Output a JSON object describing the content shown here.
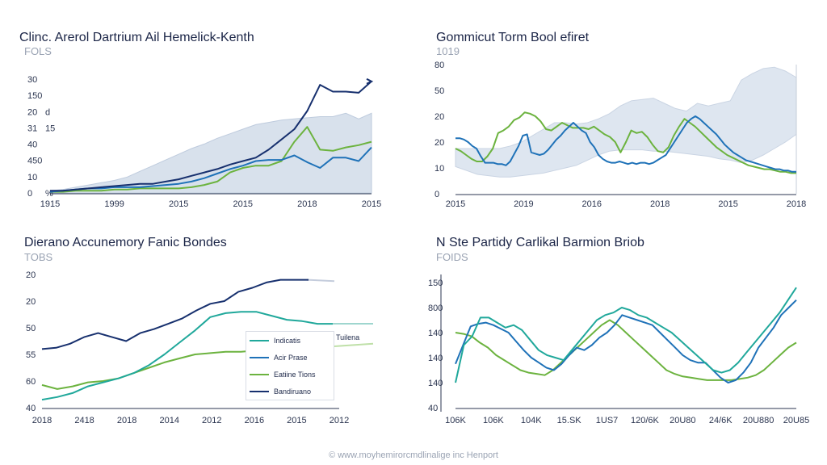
{
  "colors": {
    "navy": "#17306e",
    "blue": "#1f72b8",
    "teal": "#20a89b",
    "green": "#6cb33f",
    "band": "#d4deeb",
    "band_stroke": "#b8c6da"
  },
  "footer": "© www.moyhemirorcmdlinalige inc Henport",
  "chart_data": [
    {
      "type": "area",
      "title": "Clinc. Arerol Dartrium Ail Hemelick-Kenth",
      "subtitle": "FOLS",
      "x_labels": [
        "1915",
        "1999",
        "2015",
        "2015",
        "2018",
        "2015"
      ],
      "y_labels": [
        "30",
        "150",
        "20",
        "31",
        "40",
        "450",
        "10",
        "0"
      ],
      "y_label_suffixes": [
        "",
        "",
        "d",
        "15",
        "",
        "",
        "",
        "%"
      ],
      "ylim": [
        0,
        100
      ],
      "area_upper": [
        2,
        3,
        5,
        7,
        9,
        11,
        14,
        19,
        24,
        29,
        34,
        39,
        43,
        48,
        52,
        56,
        60,
        62,
        64,
        65,
        66,
        67,
        67,
        70,
        65,
        70
      ],
      "series": [
        {
          "name": "Navy",
          "color_key": "navy",
          "values": [
            2,
            2,
            3,
            4,
            5,
            6,
            7,
            8,
            8,
            10,
            12,
            15,
            18,
            21,
            25,
            28,
            31,
            38,
            47,
            56,
            72,
            95,
            89,
            89,
            88,
            98
          ]
        },
        {
          "name": "Blue",
          "color_key": "blue",
          "values": [
            1,
            2,
            3,
            4,
            4,
            5,
            5,
            5,
            6,
            7,
            8,
            10,
            13,
            17,
            21,
            24,
            28,
            29,
            29,
            33,
            27,
            22,
            31,
            31,
            28,
            40
          ]
        },
        {
          "name": "Green",
          "color_key": "green",
          "values": [
            1,
            1,
            2,
            2,
            2,
            3,
            3,
            4,
            4,
            4,
            4,
            5,
            7,
            10,
            18,
            22,
            24,
            24,
            28,
            45,
            58,
            38,
            37,
            40,
            42,
            45
          ]
        }
      ]
    },
    {
      "type": "line",
      "title": "Gommicut Torm Bool efiret",
      "subtitle": "1019",
      "x_labels": [
        "2015",
        "2019",
        "2016",
        "2018",
        "2015",
        "2018"
      ],
      "y_labels": [
        "80",
        "50",
        "20",
        "20",
        "10",
        "0"
      ],
      "ylim": [
        0,
        100
      ],
      "band_upper": [
        35,
        35,
        35,
        35,
        35,
        37,
        40,
        45,
        50,
        55,
        55,
        54,
        55,
        58,
        62,
        68,
        72,
        73,
        74,
        70,
        66,
        64,
        70,
        68,
        70,
        72,
        88,
        93,
        97,
        98,
        95,
        90
      ],
      "band_lower": [
        21,
        18,
        15,
        14,
        13,
        13,
        14,
        15,
        16,
        18,
        20,
        22,
        26,
        30,
        33,
        34,
        34,
        34,
        33,
        33,
        32,
        31,
        30,
        29,
        27,
        26,
        24,
        26,
        30,
        35,
        40,
        46
      ],
      "series": [
        {
          "name": "Navy",
          "color_key": "blue",
          "values": [
            43,
            43,
            42,
            40,
            37,
            35,
            29,
            24,
            24,
            24,
            23,
            23,
            22,
            25,
            31,
            37,
            45,
            46,
            32,
            31,
            30,
            31,
            34,
            38,
            42,
            45,
            49,
            52,
            55,
            52,
            49,
            47,
            40,
            36,
            30,
            27,
            25,
            24,
            24,
            25,
            24,
            23,
            24,
            23,
            24,
            24,
            23,
            24,
            26,
            28,
            30,
            35,
            40,
            45,
            50,
            55,
            58,
            60,
            58,
            55,
            52,
            49,
            46,
            42,
            38,
            35,
            32,
            30,
            28,
            26,
            25,
            24,
            23,
            22,
            21,
            20,
            19,
            19,
            18,
            18,
            17,
            17
          ]
        },
        {
          "name": "Green",
          "color_key": "green",
          "values": [
            35,
            33,
            30,
            27,
            25,
            25,
            29,
            35,
            47,
            49,
            52,
            57,
            59,
            63,
            62,
            60,
            56,
            50,
            49,
            52,
            55,
            53,
            51,
            51,
            51,
            50,
            52,
            49,
            46,
            44,
            40,
            32,
            40,
            49,
            47,
            48,
            44,
            38,
            33,
            32,
            36,
            45,
            52,
            58,
            55,
            52,
            48,
            44,
            40,
            36,
            33,
            30,
            28,
            26,
            24,
            22,
            21,
            20,
            19,
            19,
            18,
            17,
            17,
            16,
            16
          ]
        }
      ]
    },
    {
      "type": "line",
      "title": "Dierano Accunemory Fanic Bondes",
      "subtitle": "TOBS",
      "x_labels": [
        "2018",
        "2418",
        "2018",
        "2014",
        "2012",
        "2016",
        "2015",
        "2012"
      ],
      "y_labels": [
        "20",
        "20",
        "50",
        "55",
        "60",
        "40"
      ],
      "ylim": [
        0,
        100
      ],
      "legend": [
        "Indicatis",
        "Acir Prase",
        "Eatiine Tions",
        "Bandiruano"
      ],
      "legend_color_keys": [
        "teal",
        "blue",
        "green",
        "navy"
      ],
      "legend_right_label": "Tuilena",
      "series": [
        {
          "name": "Bandiruano",
          "color_key": "navy",
          "values": [
            44,
            45,
            48,
            53,
            56,
            53,
            50,
            56,
            59,
            63,
            67,
            73,
            78,
            80,
            87,
            90,
            94,
            96,
            96,
            96
          ]
        },
        {
          "name": "Indicatis",
          "color_key": "teal",
          "values": [
            6,
            8,
            11,
            16,
            19,
            22,
            26,
            32,
            40,
            49,
            58,
            68,
            71,
            72,
            72,
            69,
            66,
            65,
            63,
            63
          ]
        },
        {
          "name": "Eatiine Tions",
          "color_key": "green",
          "values": [
            17,
            14,
            16,
            19,
            20,
            22,
            26,
            30,
            34,
            37,
            40,
            41,
            42,
            42,
            43,
            44,
            45,
            45,
            46,
            46
          ]
        }
      ]
    },
    {
      "type": "line",
      "title": "N Ste Partidy Carlikal Barmion Briob",
      "subtitle": "FOIDS",
      "x_labels": [
        "106K",
        "106K",
        "104K",
        "15.SK",
        "1US7",
        "120/6K",
        "20U80",
        "24/6K",
        "20U880",
        "20U85"
      ],
      "y_labels": [
        "150",
        "800",
        "140",
        "140",
        "140",
        "40"
      ],
      "ylim": [
        0,
        100
      ],
      "series": [
        {
          "name": "Teal",
          "color_key": "teal",
          "values": [
            20,
            50,
            57,
            72,
            72,
            68,
            64,
            66,
            62,
            54,
            46,
            42,
            40,
            38,
            46,
            54,
            62,
            70,
            74,
            76,
            80,
            78,
            74,
            72,
            68,
            64,
            60,
            54,
            48,
            42,
            36,
            30,
            28,
            30,
            36,
            44,
            52,
            60,
            68,
            76,
            86,
            96
          ]
        },
        {
          "name": "Blue",
          "color_key": "blue",
          "values": [
            35,
            50,
            65,
            67,
            68,
            66,
            63,
            60,
            53,
            46,
            40,
            36,
            32,
            30,
            35,
            42,
            48,
            46,
            50,
            56,
            60,
            66,
            74,
            72,
            70,
            68,
            66,
            60,
            54,
            48,
            42,
            38,
            36,
            36,
            30,
            24,
            20,
            22,
            28,
            36,
            48,
            56,
            64,
            74,
            80,
            86
          ]
        },
        {
          "name": "Green",
          "color_key": "green",
          "values": [
            60,
            59,
            57,
            52,
            48,
            42,
            38,
            34,
            30,
            28,
            27,
            26,
            30,
            36,
            42,
            48,
            54,
            60,
            66,
            70,
            66,
            60,
            54,
            48,
            42,
            36,
            30,
            27,
            25,
            24,
            23,
            22,
            22,
            22,
            22,
            23,
            24,
            26,
            30,
            36,
            42,
            48,
            52
          ]
        }
      ]
    }
  ]
}
